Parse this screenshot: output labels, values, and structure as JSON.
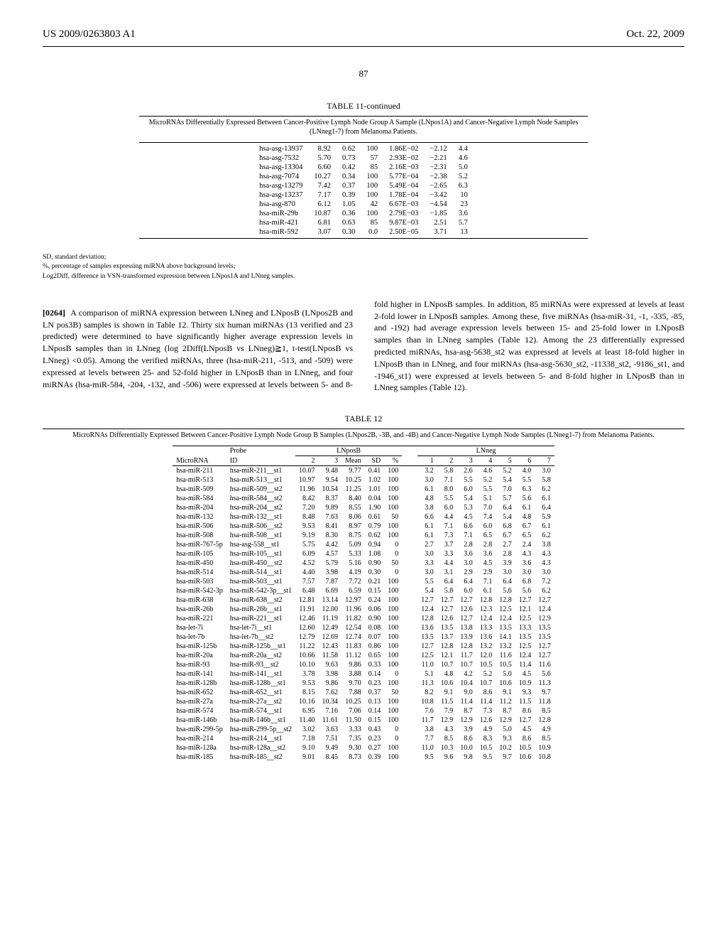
{
  "header": {
    "pub_id": "US 2009/0263803 A1",
    "date": "Oct. 22, 2009",
    "page": "87"
  },
  "table11": {
    "title": "TABLE 11-continued",
    "caption": "MicroRNAs Differentially Expressed Between Cancer-Positive Lymph Node Group A Sample (LNpos1A) and Cancer-Negative Lymph Node Samples (LNneg1-7) from Melanoma Patients.",
    "rows": [
      {
        "name": "hsa-asg-13937",
        "v1": "8.92",
        "v2": "0.62",
        "v3": "100",
        "v4": "1.86E−02",
        "v5": "−2.12",
        "v6": "4.4"
      },
      {
        "name": "hsa-asg-7532",
        "v1": "5.70",
        "v2": "0.73",
        "v3": "57",
        "v4": "2.93E−02",
        "v5": "−2.21",
        "v6": "4.6"
      },
      {
        "name": "hsa-asg-13304",
        "v1": "6.60",
        "v2": "0.42",
        "v3": "85",
        "v4": "2.16E−03",
        "v5": "−2.31",
        "v6": "5.0"
      },
      {
        "name": "hsa-asg-7074",
        "v1": "10.27",
        "v2": "0.34",
        "v3": "100",
        "v4": "5.77E−04",
        "v5": "−2.38",
        "v6": "5.2"
      },
      {
        "name": "hsa-asg-13279",
        "v1": "7.42",
        "v2": "0.37",
        "v3": "100",
        "v4": "5.49E−04",
        "v5": "−2.65",
        "v6": "6.3"
      },
      {
        "name": "hsa-asg-13237",
        "v1": "7.17",
        "v2": "0.39",
        "v3": "100",
        "v4": "1.78E−04",
        "v5": "−3.42",
        "v6": "10"
      },
      {
        "name": "hsa-asg-870",
        "v1": "6.12",
        "v2": "1.05",
        "v3": "42",
        "v4": "6.67E−03",
        "v5": "−4.54",
        "v6": "23"
      },
      {
        "name": "hsa-miR-29b",
        "v1": "10.87",
        "v2": "0.36",
        "v3": "100",
        "v4": "2.79E−03",
        "v5": "−1.85",
        "v6": "3.6"
      },
      {
        "name": "hsa-miR-421",
        "v1": "6.81",
        "v2": "0.63",
        "v3": "85",
        "v4": "9.87E−03",
        "v5": "2.51",
        "v6": "5.7"
      },
      {
        "name": "hsa-miR-592",
        "v1": "3.07",
        "v2": "0.30",
        "v3": "0.0",
        "v4": "2.50E−05",
        "v5": "3.71",
        "v6": "13"
      }
    ],
    "footnotes": [
      "SD, standard deviation;",
      "%, percentage of samples expressing miRNA above background levels;",
      "Log2Diff, difference in VSN-transformed expression between LNpos1A and LNneg samples."
    ]
  },
  "body": {
    "para_num": "[0264]",
    "left": "A comparison of miRNA expression between LNneg and LNposB (LNpos2B and LN pos3B) samples is shown in Table 12. Thirty six human miRNAs (13 verified and 23 predicted) were determined to have significantly higher average expression levels in LNposB samples than in LNneg (log 2Diff(LNposB vs LNneg)≧1, t-test(LNposB vs LNneg) <0.05). Among the verified miRNAs, three (hsa-miR-211, -513, and -509) were expressed at levels between 25- and 52-fold higher in LNposB than in LNneg, and four miRNAs (hsa-miR-584, -204, -132, and -506) were expressed at levels between 5- and 8-fold higher in LNposB samples. In addition,",
    "right": "85 miRNAs were expressed at levels at least 2-fold lower in LNposB samples. Among these, five miRNAs (hsa-miR-31, -1, -335, -85, and -192) had average expression levels between 15- and 25-fold lower in LNposB samples than in LNneg samples (Table 12). Among the 23 differentially expressed predicted miRNAs, hsa-asg-5638_st2 was expressed at levels at least 18-fold higher in LNposB than in LNneg, and four miRNAs (hsa-asg-5630_st2, -11338_st2, -9186_st1, and -1946_st1) were expressed at levels between 5- and 8-fold higher in LNposB than in LNneg samples (Table 12)."
  },
  "table12": {
    "title": "TABLE 12",
    "caption": "MicroRNAs Differentially Expressed Between Cancer-Positive Lymph Node Group B Samples (LNpos2B, -3B, and -4B) and Cancer-Negative Lymph Node Samples (LNneg1-7) from Melanoma Patients.",
    "group_headers": {
      "g1": "Probe",
      "g2": "LNposB",
      "g3": "LNneg"
    },
    "col_headers": {
      "c1": "MicroRNA",
      "c2": "ID",
      "cb1": "2",
      "cb2": "3",
      "cb3": "Mean",
      "cb4": "SD",
      "cb5": "%",
      "cn1": "1",
      "cn2": "2",
      "cn3": "3",
      "cn4": "4",
      "cn5": "5",
      "cn6": "6",
      "cn7": "7"
    },
    "rows": [
      {
        "m": "hsa-miR-211",
        "id": "hsa-miR-211__st1",
        "b": [
          "10.07",
          "9.48",
          "9.77",
          "0.41",
          "100"
        ],
        "n": [
          "3.2",
          "5.8",
          "2.6",
          "4.6",
          "5.2",
          "4.0",
          "3.0"
        ]
      },
      {
        "m": "hsa-miR-513",
        "id": "hsa-miR-513__st1",
        "b": [
          "10.97",
          "9.54",
          "10.25",
          "1.02",
          "100"
        ],
        "n": [
          "3.0",
          "7.1",
          "5.5",
          "5.2",
          "5.4",
          "5.5",
          "5.8"
        ]
      },
      {
        "m": "hsa-miR-509",
        "id": "hsa-miR-509__st2",
        "b": [
          "11.96",
          "10.54",
          "11.25",
          "1.01",
          "100"
        ],
        "n": [
          "6.1",
          "8.0",
          "6.0",
          "5.5",
          "7.0",
          "6.3",
          "6.2"
        ]
      },
      {
        "m": "hsa-miR-584",
        "id": "hsa-miR-584__st2",
        "b": [
          "8.42",
          "8.37",
          "8.40",
          "0.04",
          "100"
        ],
        "n": [
          "4.8",
          "5.5",
          "5.4",
          "5.1",
          "5.7",
          "5.6",
          "6.1"
        ]
      },
      {
        "m": "hsa-miR-204",
        "id": "hsa-miR-204__st2",
        "b": [
          "7.20",
          "9.89",
          "8.55",
          "1.90",
          "100"
        ],
        "n": [
          "3.8",
          "6.0",
          "5.3",
          "7.0",
          "6.4",
          "6.1",
          "6.4"
        ]
      },
      {
        "m": "hsa-miR-132",
        "id": "hsa-miR-132__st1",
        "b": [
          "8.48",
          "7.63",
          "8.06",
          "0.61",
          "50"
        ],
        "n": [
          "6.6",
          "4.4",
          "4.5",
          "7.4",
          "5.4",
          "4.8",
          "5.9"
        ]
      },
      {
        "m": "hsa-miR-506",
        "id": "hsa-miR-506__st2",
        "b": [
          "9.53",
          "8.41",
          "8.97",
          "0.79",
          "100"
        ],
        "n": [
          "6.1",
          "7.1",
          "6.6",
          "6.0",
          "6.8",
          "6.7",
          "6.1"
        ]
      },
      {
        "m": "hsa-miR-508",
        "id": "hsa-miR-508__st1",
        "b": [
          "9.19",
          "8.30",
          "8.75",
          "0.62",
          "100"
        ],
        "n": [
          "6.1",
          "7.3",
          "7.1",
          "6.5",
          "6.7",
          "6.5",
          "6.2"
        ]
      },
      {
        "m": "hsa-miR-767-5p",
        "id": "hsa-asg-558__st1",
        "b": [
          "5.75",
          "4.42",
          "5.09",
          "0.94",
          "0"
        ],
        "n": [
          "2.7",
          "3.7",
          "2.8",
          "2.8",
          "2.7",
          "2.4",
          "3.8"
        ]
      },
      {
        "m": "hsa-miR-105",
        "id": "hsa-miR-105__st1",
        "b": [
          "6.09",
          "4.57",
          "5.33",
          "1.08",
          "0"
        ],
        "n": [
          "3.0",
          "3.3",
          "3.6",
          "3.6",
          "2.8",
          "4.3",
          "4.3"
        ]
      },
      {
        "m": "hsa-miR-450",
        "id": "hsa-miR-450__st2",
        "b": [
          "4.52",
          "5.79",
          "5.16",
          "0.90",
          "50"
        ],
        "n": [
          "3.3",
          "4.4",
          "3.0",
          "4.5",
          "3.9",
          "3.6",
          "4.3"
        ]
      },
      {
        "m": "hsa-miR-514",
        "id": "hsa-miR-514__st1",
        "b": [
          "4.40",
          "3.98",
          "4.19",
          "0.30",
          "0"
        ],
        "n": [
          "3.0",
          "3.1",
          "2.9",
          "2.9",
          "3.0",
          "3.0",
          "3.0"
        ]
      },
      {
        "m": "hsa-miR-503",
        "id": "hsa-miR-503__st1",
        "b": [
          "7.57",
          "7.87",
          "7.72",
          "0.21",
          "100"
        ],
        "n": [
          "5.5",
          "6.4",
          "6.4",
          "7.1",
          "6.4",
          "6.8",
          "7.2"
        ]
      },
      {
        "m": "hsa-miR-542-3p",
        "id": "hsa-miR-542-3p__st1",
        "b": [
          "6.48",
          "6.69",
          "6.59",
          "0.15",
          "100"
        ],
        "n": [
          "5.4",
          "5.8",
          "6.0",
          "6.1",
          "5.6",
          "5.6",
          "6.2"
        ]
      },
      {
        "m": "hsa-miR-638",
        "id": "hsa-miR-638__st2",
        "b": [
          "12.81",
          "13.14",
          "12.97",
          "0.24",
          "100"
        ],
        "n": [
          "12.7",
          "12.7",
          "12.7",
          "12.8",
          "12.8",
          "12.7",
          "12.7"
        ]
      },
      {
        "m": "hsa-miR-26b",
        "id": "hsa-miR-26b__st1",
        "b": [
          "11.91",
          "12.00",
          "11.96",
          "0.06",
          "100"
        ],
        "n": [
          "12.4",
          "12.7",
          "12.6",
          "12.3",
          "12.5",
          "12.1",
          "12.4"
        ]
      },
      {
        "m": "hsa-miR-221",
        "id": "hsa-miR-221__st1",
        "b": [
          "12.46",
          "11.19",
          "11.82",
          "0.90",
          "100"
        ],
        "n": [
          "12.8",
          "12.6",
          "12.7",
          "12.4",
          "12.4",
          "12.5",
          "12.9"
        ]
      },
      {
        "m": "hsa-let-7i",
        "id": "hsa-let-7i__st1",
        "b": [
          "12.60",
          "12.49",
          "12.54",
          "0.08",
          "100"
        ],
        "n": [
          "13.6",
          "13.5",
          "13.8",
          "13.3",
          "13.5",
          "13.3",
          "13.5"
        ]
      },
      {
        "m": "hsa-let-7b",
        "id": "hsa-let-7b__st2",
        "b": [
          "12.79",
          "12.69",
          "12.74",
          "0.07",
          "100"
        ],
        "n": [
          "13.5",
          "13.7",
          "13.9",
          "13.6",
          "14.1",
          "13.5",
          "13.5"
        ]
      },
      {
        "m": "hsa-miR-125b",
        "id": "hsa-miR-125b__st1",
        "b": [
          "11.22",
          "12.43",
          "11.83",
          "0.86",
          "100"
        ],
        "n": [
          "12.7",
          "12.8",
          "12.8",
          "13.2",
          "13.2",
          "12.5",
          "12.7"
        ]
      },
      {
        "m": "hsa-miR-20a",
        "id": "hsa-miR-20a__st2",
        "b": [
          "10.66",
          "11.58",
          "11.12",
          "0.65",
          "100"
        ],
        "n": [
          "12.5",
          "12.1",
          "11.7",
          "12.0",
          "11.6",
          "12.4",
          "12.7"
        ]
      },
      {
        "m": "hsa-miR-93",
        "id": "hsa-miR-93__st2",
        "b": [
          "10.10",
          "9.63",
          "9.86",
          "0.33",
          "100"
        ],
        "n": [
          "11.0",
          "10.7",
          "10.7",
          "10.5",
          "10.5",
          "11.4",
          "11.6"
        ]
      },
      {
        "m": "hsa-miR-141",
        "id": "hsa-miR-141__st1",
        "b": [
          "3.78",
          "3.98",
          "3.88",
          "0.14",
          "0"
        ],
        "n": [
          "5.1",
          "4.8",
          "4.2",
          "5.2",
          "5.0",
          "4.5",
          "5.6"
        ]
      },
      {
        "m": "hsa-miR-128b",
        "id": "hsa-miR-128b__st1",
        "b": [
          "9.53",
          "9.86",
          "9.70",
          "0.23",
          "100"
        ],
        "n": [
          "11.3",
          "10.6",
          "10.4",
          "10.7",
          "10.6",
          "10.9",
          "11.3"
        ]
      },
      {
        "m": "hsa-miR-652",
        "id": "hsa-miR-652__st1",
        "b": [
          "8.15",
          "7.62",
          "7.88",
          "0.37",
          "50"
        ],
        "n": [
          "8.2",
          "9.1",
          "9.0",
          "8.6",
          "9.1",
          "9.3",
          "9.7"
        ]
      },
      {
        "m": "hsa-miR-27a",
        "id": "hsa-miR-27a__st2",
        "b": [
          "10.16",
          "10.34",
          "10.25",
          "0.13",
          "100"
        ],
        "n": [
          "10.8",
          "11.5",
          "11.4",
          "11.4",
          "11.2",
          "11.5",
          "11.8"
        ]
      },
      {
        "m": "hsa-miR-574",
        "id": "hsa-miR-574__st1",
        "b": [
          "6.95",
          "7.16",
          "7.06",
          "0.14",
          "100"
        ],
        "n": [
          "7.6",
          "7.9",
          "8.7",
          "7.3",
          "8.7",
          "8.6",
          "8.5"
        ]
      },
      {
        "m": "hsa-miR-146b",
        "id": "hsa-miR-146b__st1",
        "b": [
          "11.40",
          "11.61",
          "11.50",
          "0.15",
          "100"
        ],
        "n": [
          "11.7",
          "12.9",
          "12.9",
          "12.6",
          "12.9",
          "12.7",
          "12.8"
        ]
      },
      {
        "m": "hsa-miR-299-5p",
        "id": "hsa-miR-299-5p__st2",
        "b": [
          "3.02",
          "3.63",
          "3.33",
          "0.43",
          "0"
        ],
        "n": [
          "3.8",
          "4.3",
          "3.9",
          "4.9",
          "5.0",
          "4.5",
          "4.9"
        ]
      },
      {
        "m": "hsa-miR-214",
        "id": "hsa-miR-214__st1",
        "b": [
          "7.18",
          "7.51",
          "7.35",
          "0.23",
          "0"
        ],
        "n": [
          "7.7",
          "8.5",
          "8.6",
          "8.3",
          "9.3",
          "8.6",
          "8.5"
        ]
      },
      {
        "m": "hsa-miR-128a",
        "id": "hsa-miR-128a__st2",
        "b": [
          "9.10",
          "9.49",
          "9.30",
          "0.27",
          "100"
        ],
        "n": [
          "11.0",
          "10.3",
          "10.0",
          "10.5",
          "10.2",
          "10.5",
          "10.9"
        ]
      },
      {
        "m": "hsa-miR-185",
        "id": "hsa-miR-185__st2",
        "b": [
          "9.01",
          "8.45",
          "8.73",
          "0.39",
          "100"
        ],
        "n": [
          "9.5",
          "9.6",
          "9.8",
          "9.5",
          "9.7",
          "10.6",
          "10.8"
        ]
      }
    ]
  }
}
